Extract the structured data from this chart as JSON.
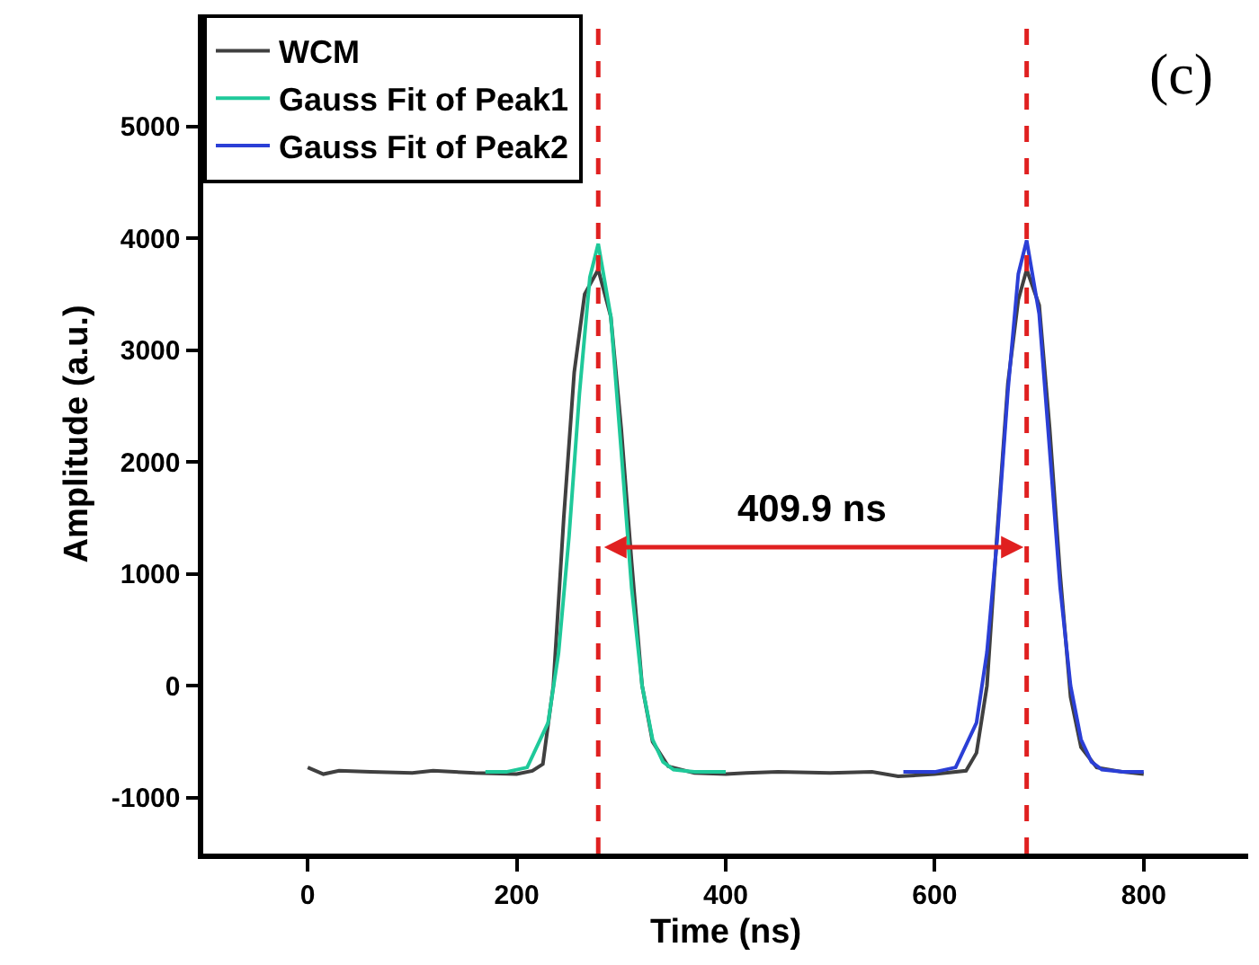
{
  "chart_data": {
    "type": "line",
    "xlabel": "Time (ns)",
    "ylabel": "Amplitude (a.u.)",
    "xlim": [
      -100,
      900
    ],
    "xticks": [
      0,
      200,
      400,
      600,
      800
    ],
    "ylim": [
      -1500,
      6000
    ],
    "yticks": [
      -1000,
      0,
      1000,
      2000,
      3000,
      4000,
      5000
    ],
    "grid": false,
    "legend": "top left",
    "marker": "none",
    "line_style": "solid",
    "series": [
      {
        "name": "WCM",
        "color": "#404040",
        "x": [
          0,
          15,
          30,
          60,
          100,
          120,
          160,
          200,
          215,
          225,
          235,
          245,
          255,
          265,
          278,
          290,
          300,
          310,
          320,
          330,
          345,
          370,
          400,
          420,
          450,
          500,
          540,
          565,
          600,
          630,
          640,
          650,
          660,
          670,
          680,
          688,
          700,
          710,
          720,
          730,
          740,
          755,
          780,
          800
        ],
        "values": [
          -730,
          -790,
          -760,
          -770,
          -780,
          -760,
          -780,
          -790,
          -760,
          -700,
          0,
          1500,
          2800,
          3500,
          3720,
          3300,
          2300,
          1100,
          0,
          -500,
          -720,
          -780,
          -790,
          -780,
          -770,
          -780,
          -770,
          -810,
          -790,
          -760,
          -600,
          0,
          1400,
          2700,
          3450,
          3720,
          3400,
          2300,
          1000,
          -100,
          -550,
          -730,
          -770,
          -790
        ]
      },
      {
        "name": "Gauss Fit of Peak1",
        "color": "#1fc99a",
        "x": [
          170,
          190,
          210,
          230,
          240,
          250,
          260,
          270,
          278,
          290,
          300,
          310,
          320,
          330,
          340,
          350,
          370,
          400
        ],
        "values": [
          -770,
          -770,
          -730,
          -330,
          290,
          1330,
          2610,
          3650,
          3950,
          3300,
          2100,
          870,
          0,
          -480,
          -680,
          -750,
          -770,
          -770
        ]
      },
      {
        "name": "Gauss Fit of Peak2",
        "color": "#2b3fd6",
        "x": [
          570,
          600,
          620,
          640,
          650,
          660,
          670,
          680,
          688,
          700,
          710,
          720,
          730,
          740,
          750,
          760,
          780,
          800
        ],
        "values": [
          -770,
          -770,
          -730,
          -330,
          300,
          1340,
          2630,
          3680,
          3980,
          3320,
          2110,
          880,
          0,
          -480,
          -680,
          -750,
          -770,
          -770
        ]
      }
    ],
    "ref_lines": [
      {
        "axis": "x",
        "value": 278,
        "color": "#e02020",
        "line_style": "dashed"
      },
      {
        "axis": "x",
        "value": 688,
        "color": "#e02020",
        "line_style": "dashed"
      }
    ],
    "annotations": [
      "(c)",
      "409.9 ns"
    ]
  }
}
